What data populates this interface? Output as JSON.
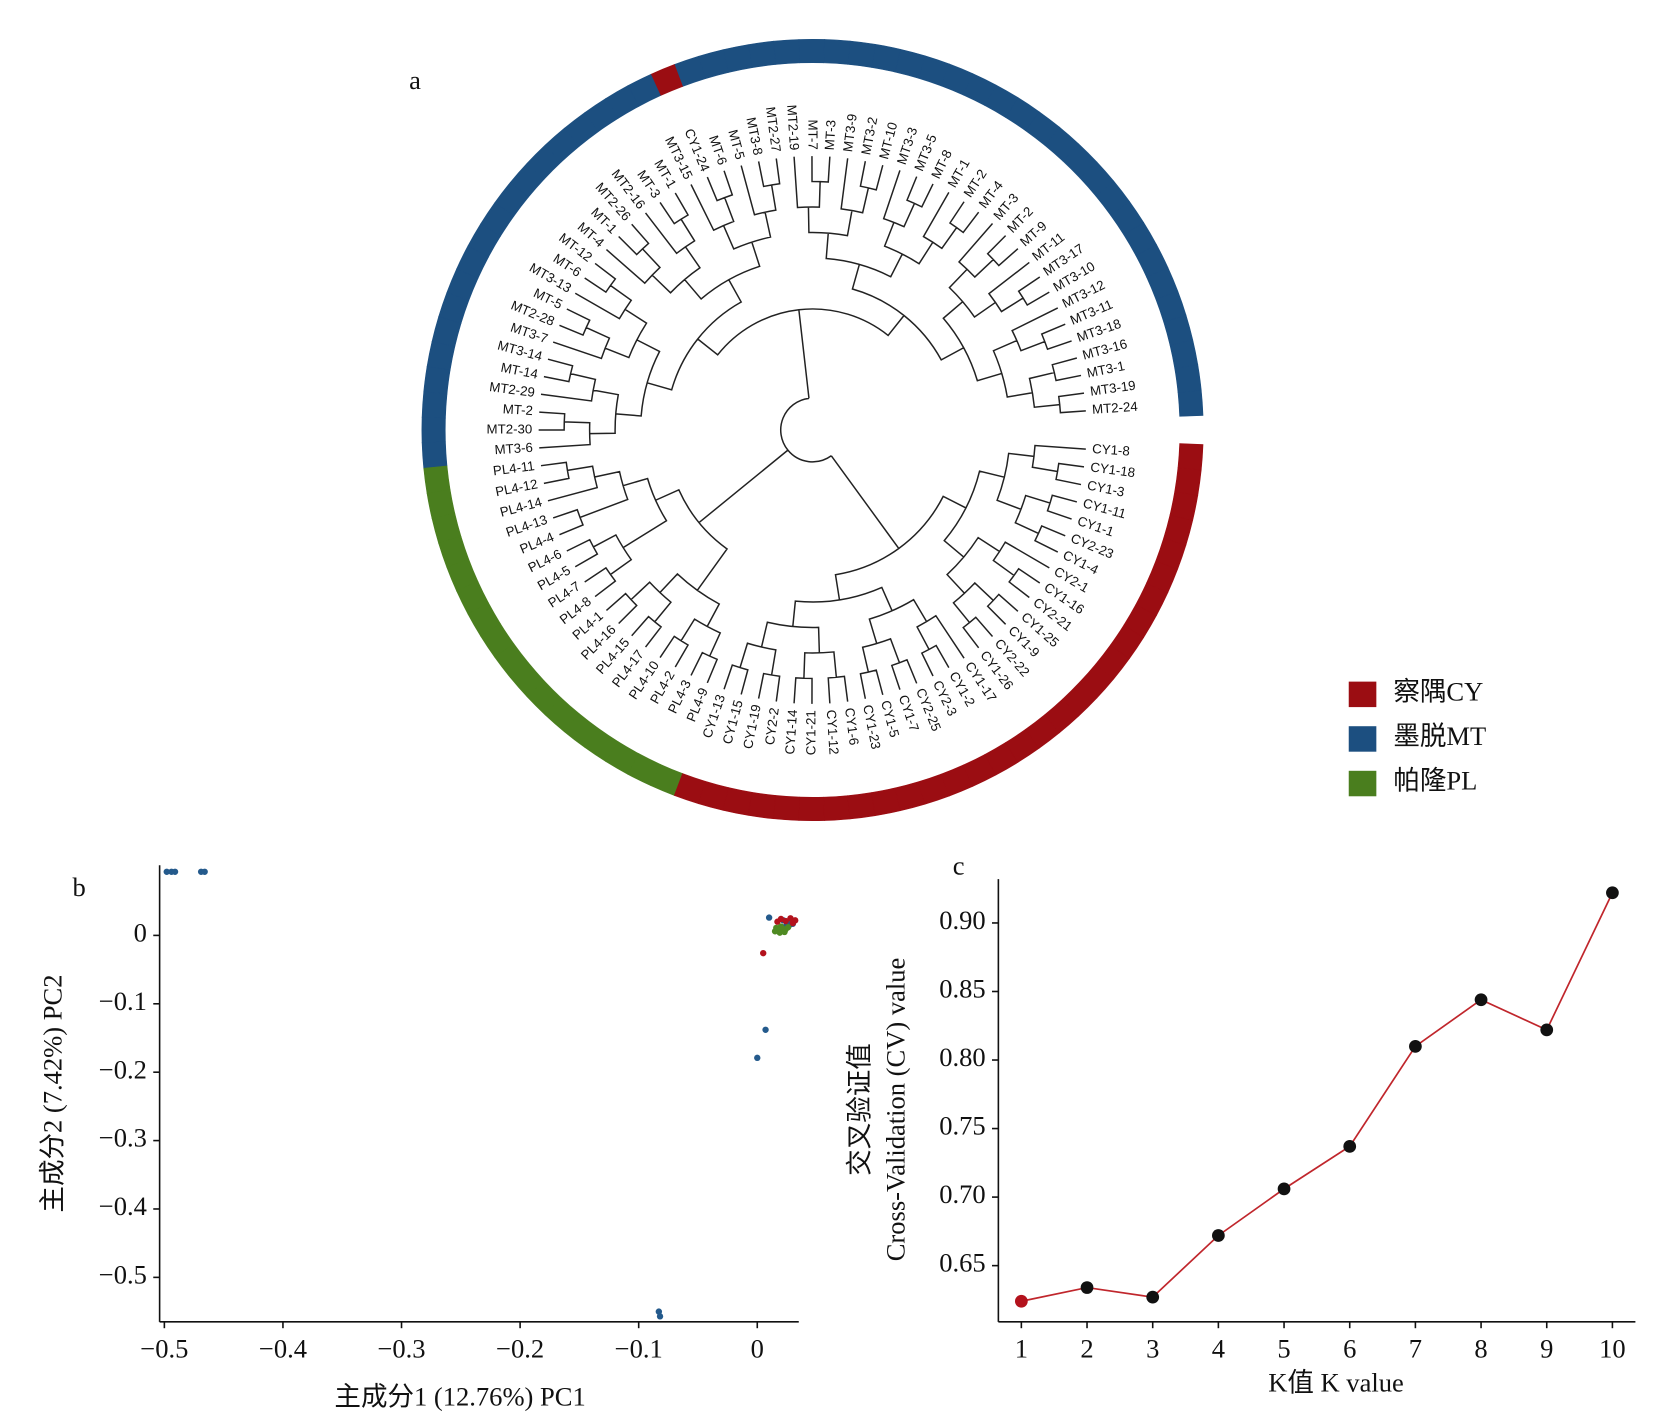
{
  "chart_data": [
    {
      "type": "dendrogram",
      "panel": "a",
      "groups": [
        {
          "name": "察隅CY",
          "color": "#9b0d12"
        },
        {
          "name": "墨脱MT",
          "color": "#1c4f80"
        },
        {
          "name": "帕隆PL",
          "color": "#4a7e1e"
        }
      ],
      "leaves": [
        {
          "label": "MT2-24",
          "group": 1
        },
        {
          "label": "MT3-19",
          "group": 1
        },
        {
          "label": "MT3-1",
          "group": 1
        },
        {
          "label": "MT3-16",
          "group": 1
        },
        {
          "label": "MT3-18",
          "group": 1
        },
        {
          "label": "MT3-11",
          "group": 1
        },
        {
          "label": "MT3-12",
          "group": 1
        },
        {
          "label": "MT3-10",
          "group": 1
        },
        {
          "label": "MT3-17",
          "group": 1
        },
        {
          "label": "MT-11",
          "group": 1
        },
        {
          "label": "MT-9",
          "group": 1
        },
        {
          "label": "MT-2",
          "group": 1
        },
        {
          "label": "MT-3",
          "group": 1
        },
        {
          "label": "MT-4",
          "group": 1
        },
        {
          "label": "MT-2",
          "group": 1
        },
        {
          "label": "MT-1",
          "group": 1
        },
        {
          "label": "MT-8",
          "group": 1
        },
        {
          "label": "MT3-5",
          "group": 1
        },
        {
          "label": "MT3-3",
          "group": 1
        },
        {
          "label": "MT-10",
          "group": 1
        },
        {
          "label": "MT3-2",
          "group": 1
        },
        {
          "label": "MT3-9",
          "group": 1
        },
        {
          "label": "MT-3",
          "group": 1
        },
        {
          "label": "MT-7",
          "group": 1
        },
        {
          "label": "MT2-19",
          "group": 1
        },
        {
          "label": "MT2-27",
          "group": 1
        },
        {
          "label": "MT3-8",
          "group": 1
        },
        {
          "label": "MT-5",
          "group": 1
        },
        {
          "label": "MT-6",
          "group": 1
        },
        {
          "label": "CY1-24",
          "group": 0
        },
        {
          "label": "MT3-15",
          "group": 1
        },
        {
          "label": "MT-1",
          "group": 1
        },
        {
          "label": "MT-3",
          "group": 1
        },
        {
          "label": "MT2-16",
          "group": 1
        },
        {
          "label": "MT2-26",
          "group": 1
        },
        {
          "label": "MT-1",
          "group": 1
        },
        {
          "label": "MT-4",
          "group": 1
        },
        {
          "label": "MT-12",
          "group": 1
        },
        {
          "label": "MT-6",
          "group": 1
        },
        {
          "label": "MT3-13",
          "group": 1
        },
        {
          "label": "MT-5",
          "group": 1
        },
        {
          "label": "MT2-28",
          "group": 1
        },
        {
          "label": "MT3-7",
          "group": 1
        },
        {
          "label": "MT3-14",
          "group": 1
        },
        {
          "label": "MT-14",
          "group": 1
        },
        {
          "label": "MT2-29",
          "group": 1
        },
        {
          "label": "MT-2",
          "group": 1
        },
        {
          "label": "MT2-30",
          "group": 1
        },
        {
          "label": "MT3-6",
          "group": 1
        },
        {
          "label": "PL4-11",
          "group": 2
        },
        {
          "label": "PL4-12",
          "group": 2
        },
        {
          "label": "PL4-14",
          "group": 2
        },
        {
          "label": "PL4-13",
          "group": 2
        },
        {
          "label": "PL4-4",
          "group": 2
        },
        {
          "label": "PL4-6",
          "group": 2
        },
        {
          "label": "PL4-5",
          "group": 2
        },
        {
          "label": "PL4-7",
          "group": 2
        },
        {
          "label": "PL4-8",
          "group": 2
        },
        {
          "label": "PL4-1",
          "group": 2
        },
        {
          "label": "PL4-16",
          "group": 2
        },
        {
          "label": "PL4-15",
          "group": 2
        },
        {
          "label": "PL4-17",
          "group": 2
        },
        {
          "label": "PL4-10",
          "group": 2
        },
        {
          "label": "PL4-2",
          "group": 2
        },
        {
          "label": "PL4-3",
          "group": 2
        },
        {
          "label": "PL4-9",
          "group": 2
        },
        {
          "label": "CY1-13",
          "group": 0
        },
        {
          "label": "CY1-15",
          "group": 0
        },
        {
          "label": "CY1-19",
          "group": 0
        },
        {
          "label": "CY2-2",
          "group": 0
        },
        {
          "label": "CY1-14",
          "group": 0
        },
        {
          "label": "CY1-21",
          "group": 0
        },
        {
          "label": "CY1-12",
          "group": 0
        },
        {
          "label": "CY1-6",
          "group": 0
        },
        {
          "label": "CY1-23",
          "group": 0
        },
        {
          "label": "CY1-5",
          "group": 0
        },
        {
          "label": "CY1-7",
          "group": 0
        },
        {
          "label": "CY2-25",
          "group": 0
        },
        {
          "label": "CY2-3",
          "group": 0
        },
        {
          "label": "CY1-2",
          "group": 0
        },
        {
          "label": "CY1-17",
          "group": 0
        },
        {
          "label": "CY1-26",
          "group": 0
        },
        {
          "label": "CY2-22",
          "group": 0
        },
        {
          "label": "CY1-9",
          "group": 0
        },
        {
          "label": "CY1-25",
          "group": 0
        },
        {
          "label": "CY2-21",
          "group": 0
        },
        {
          "label": "CY1-16",
          "group": 0
        },
        {
          "label": "CY2-1",
          "group": 0
        },
        {
          "label": "CY1-4",
          "group": 0
        },
        {
          "label": "CY2-23",
          "group": 0
        },
        {
          "label": "CY1-1",
          "group": 0
        },
        {
          "label": "CY1-11",
          "group": 0
        },
        {
          "label": "CY1-3",
          "group": 0
        },
        {
          "label": "CY1-18",
          "group": 0
        },
        {
          "label": "CY1-8",
          "group": 0
        }
      ]
    },
    {
      "type": "scatter",
      "panel": "b",
      "xlabel": "主成分1 (12.76%) PC1",
      "ylabel": "主成分2 (7.42%) PC2",
      "xlim": [
        -0.504,
        0.035
      ],
      "ylim": [
        -0.565,
        0.1025
      ],
      "xticks": [
        {
          "value": -0.5,
          "label": "−0.5"
        },
        {
          "value": -0.4,
          "label": "−0.4"
        },
        {
          "value": -0.3,
          "label": "−0.3"
        },
        {
          "value": -0.2,
          "label": "−0.2"
        },
        {
          "value": -0.1,
          "label": "−0.1"
        },
        0
      ],
      "yticks": [
        0,
        {
          "value": -0.1,
          "label": "−0.1"
        },
        {
          "value": -0.2,
          "label": "−0.2"
        },
        {
          "value": -0.3,
          "label": "−0.3"
        },
        {
          "value": -0.4,
          "label": "−0.4"
        },
        {
          "value": -0.5,
          "label": "−0.5"
        }
      ],
      "series": [
        {
          "color": "#245a8c",
          "x": [
            -0.498,
            -0.494,
            -0.491,
            -0.469,
            -0.466,
            -0.083,
            -0.082,
            0,
            0.007,
            0.01,
            0.022,
            0.025,
            0.028,
            0.03,
            0.024,
            0.027
          ],
          "values": [
            0.093,
            0.093,
            0.093,
            0.093,
            0.093,
            -0.55,
            -0.557,
            -0.179,
            -0.138,
            0.026,
            0.022,
            0.018,
            0.02,
            0.017,
            0.013,
            0.015
          ]
        },
        {
          "color": "#b3121c",
          "x": [
            0.005,
            0.017,
            0.02,
            0.028,
            0.032,
            0.03,
            0.024
          ],
          "values": [
            -0.026,
            0.02,
            0.024,
            0.025,
            0.022,
            0.018,
            0.021
          ]
        },
        {
          "color": "#4f8a22",
          "x": [
            0.015,
            0.018,
            0.021,
            0.024,
            0.019,
            0.023,
            0.026,
            0.016,
            0.02
          ],
          "values": [
            0.006,
            0.008,
            0.01,
            0.009,
            0.004,
            0.005,
            0.012,
            0.011,
            0.013
          ]
        }
      ]
    },
    {
      "type": "line",
      "panel": "c",
      "xlabel": "K值 K value",
      "ylabel": [
        "交叉验证值",
        "Cross-Validation (CV) value"
      ],
      "x": [
        1,
        2,
        3,
        4,
        5,
        6,
        7,
        8,
        9,
        10
      ],
      "values": [
        0.624,
        0.634,
        0.627,
        0.672,
        0.706,
        0.737,
        0.81,
        0.844,
        0.822,
        0.922
      ],
      "color": "#c0262c",
      "point_colors": [
        "#b3121c",
        "#111111",
        "#111111",
        "#111111",
        "#111111",
        "#111111",
        "#111111",
        "#111111",
        "#111111",
        "#111111"
      ],
      "xlim": [
        0.65,
        10.35
      ],
      "ylim": [
        0.609,
        0.932
      ],
      "xticks": [
        1,
        2,
        3,
        4,
        5,
        6,
        7,
        8,
        9,
        10
      ],
      "yticks": [
        0.65,
        {
          "value": 0.7,
          "label": "0.70"
        },
        0.75,
        {
          "value": 0.8,
          "label": "0.80"
        },
        0.85,
        {
          "value": 0.9,
          "label": "0.90"
        }
      ]
    }
  ]
}
